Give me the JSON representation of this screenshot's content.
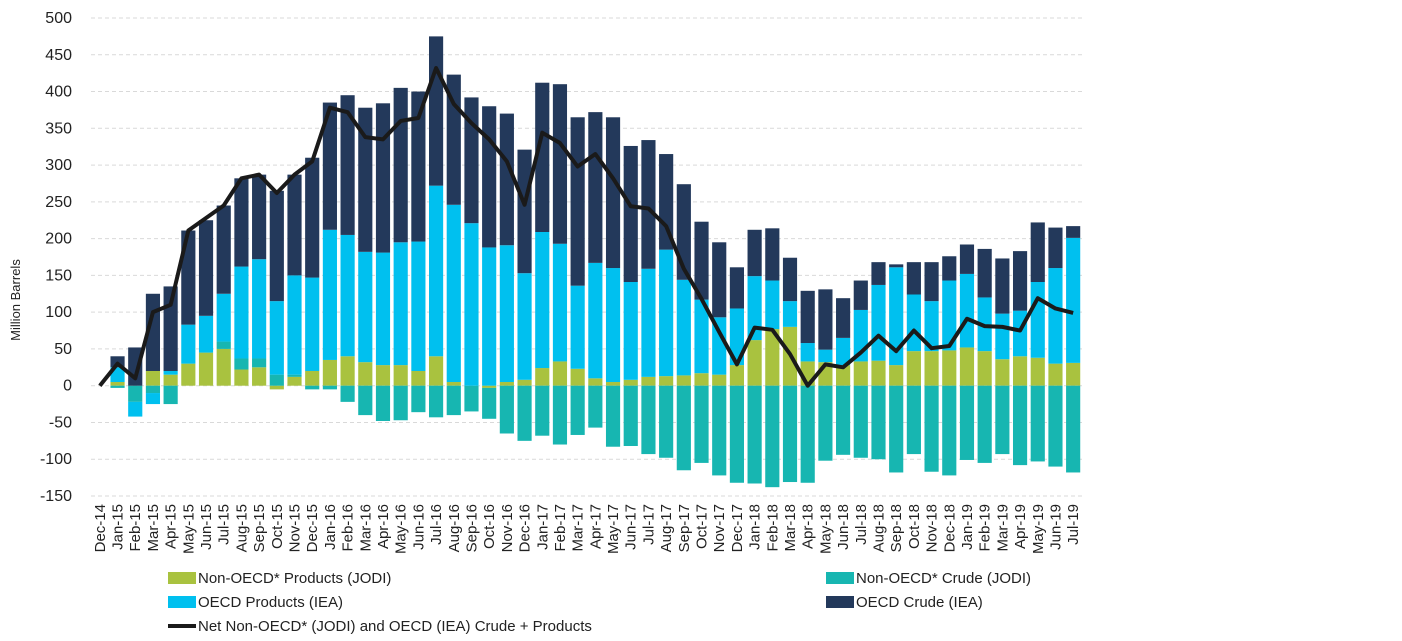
{
  "chart_data": {
    "type": "bar",
    "y_label": "Million Barrels",
    "categories": [
      "Dec-14",
      "Jan-15",
      "Feb-15",
      "Mar-15",
      "Apr-15",
      "May-15",
      "Jun-15",
      "Jul-15",
      "Aug-15",
      "Sep-15",
      "Oct-15",
      "Nov-15",
      "Dec-15",
      "Jan-16",
      "Feb-16",
      "Mar-16",
      "Apr-16",
      "May-16",
      "Jun-16",
      "Jul-16",
      "Aug-16",
      "Sep-16",
      "Oct-16",
      "Nov-16",
      "Dec-16",
      "Jan-17",
      "Feb-17",
      "Mar-17",
      "Apr-17",
      "May-17",
      "Jun-17",
      "Jul-17",
      "Aug-17",
      "Sep-17",
      "Oct-17",
      "Nov-17",
      "Dec-17",
      "Jan-18",
      "Feb-18",
      "Mar-18",
      "Apr-18",
      "May-18",
      "Jun-18",
      "Jul-18",
      "Aug-18",
      "Sep-18",
      "Oct-18",
      "Nov-18",
      "Dec-18",
      "Jan-19",
      "Feb-19",
      "Mar-19",
      "Apr-19",
      "May-19",
      "Jun-19",
      "Jul-19"
    ],
    "series": [
      {
        "name": "Non-OECD* Products (JODI)",
        "color": "#a9c23f",
        "values": [
          0,
          5,
          0,
          20,
          15,
          30,
          45,
          50,
          22,
          25,
          -5,
          12,
          20,
          35,
          40,
          32,
          28,
          28,
          20,
          40,
          5,
          0,
          -3,
          5,
          8,
          24,
          33,
          23,
          10,
          5,
          8,
          12,
          13,
          14,
          17,
          15,
          28,
          62,
          77,
          80,
          33,
          32,
          28,
          33,
          34,
          28,
          47,
          47,
          48,
          52,
          47,
          36,
          40,
          38,
          30,
          31
        ]
      },
      {
        "name": "Non-OECD* Crude (JODI)",
        "color": "#17b6b1",
        "values": [
          0,
          -3,
          -22,
          -10,
          -25,
          0,
          0,
          10,
          15,
          12,
          15,
          3,
          -5,
          -5,
          -22,
          -40,
          -48,
          -47,
          -36,
          -43,
          -40,
          -35,
          -42,
          -65,
          -75,
          -68,
          -80,
          -67,
          -57,
          -83,
          -82,
          -93,
          -98,
          -115,
          -105,
          -122,
          -132,
          -133,
          -138,
          -131,
          -132,
          -102,
          -94,
          -98,
          -100,
          -118,
          -93,
          -117,
          -122,
          -101,
          -105,
          -93,
          -108,
          -103,
          -110,
          -118
        ]
      },
      {
        "name": "OECD Products (IEA)",
        "color": "#00c0ef",
        "values": [
          0,
          20,
          -20,
          -15,
          5,
          53,
          50,
          65,
          125,
          135,
          100,
          135,
          127,
          177,
          165,
          150,
          153,
          167,
          176,
          232,
          241,
          221,
          188,
          186,
          145,
          185,
          160,
          113,
          157,
          155,
          133,
          147,
          172,
          130,
          100,
          78,
          77,
          87,
          66,
          35,
          25,
          17,
          37,
          70,
          103,
          133,
          77,
          68,
          95,
          100,
          73,
          62,
          62,
          103,
          130,
          170
        ]
      },
      {
        "name": "OECD Crude (IEA)",
        "color": "#23395b",
        "values": [
          0,
          15,
          52,
          105,
          115,
          128,
          130,
          120,
          120,
          115,
          150,
          137,
          163,
          173,
          190,
          196,
          203,
          210,
          204,
          203,
          177,
          171,
          192,
          179,
          168,
          203,
          217,
          229,
          205,
          205,
          185,
          175,
          130,
          130,
          106,
          102,
          56,
          63,
          71,
          59,
          71,
          82,
          54,
          40,
          31,
          4,
          44,
          53,
          33,
          40,
          66,
          75,
          81,
          81,
          55,
          16
        ]
      },
      {
        "name": "Net Non-OECD* (JODI) and OECD (IEA) Crude + Products",
        "color": "#1a1a1a",
        "type": "line",
        "values": [
          0,
          30,
          10,
          100,
          110,
          211,
          228,
          245,
          282,
          287,
          262,
          287,
          305,
          378,
          372,
          338,
          335,
          360,
          364,
          432,
          383,
          357,
          335,
          305,
          246,
          344,
          330,
          298,
          315,
          282,
          244,
          241,
          217,
          159,
          118,
          73,
          29,
          79,
          76,
          43,
          0,
          29,
          25,
          45,
          68,
          47,
          75,
          51,
          54,
          91,
          81,
          80,
          75,
          119,
          105,
          99
        ]
      }
    ],
    "ylim": [
      -150,
      500
    ],
    "yticks": [
      -150,
      -100,
      -50,
      0,
      50,
      100,
      150,
      200,
      250,
      300,
      350,
      400,
      450,
      500
    ],
    "grid": true
  }
}
